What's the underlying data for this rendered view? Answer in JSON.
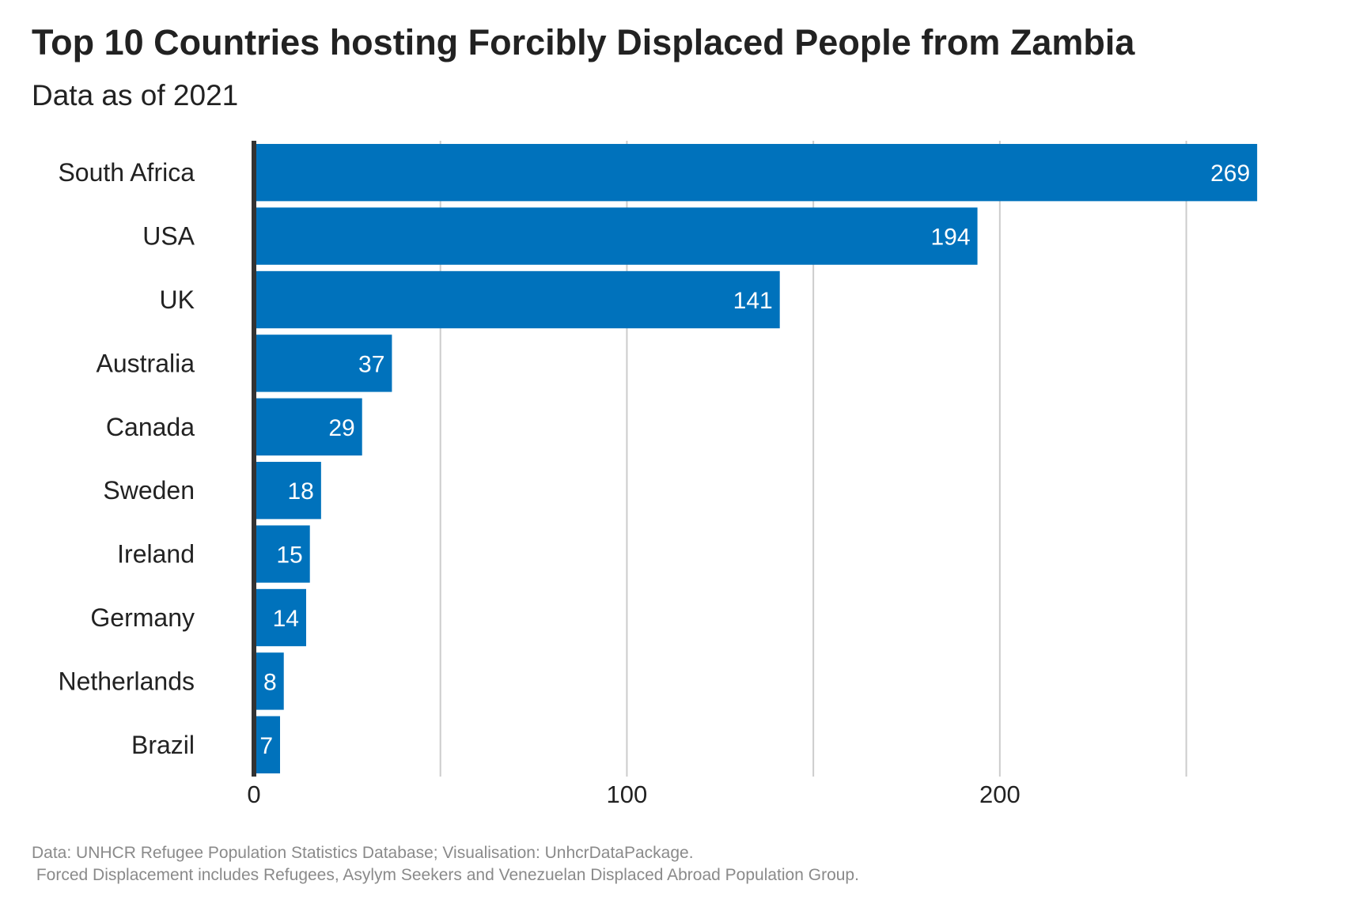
{
  "title": "Top 10 Countries hosting Forcibly Displaced People from Zambia",
  "subtitle": "Data as of 2021",
  "caption_line1": "Data: UNHCR Refugee Population Statistics Database; Visualisation: UnhcrDataPackage.",
  "caption_line2": " Forced Displacement includes Refugees, Asylym Seekers and Venezuelan Displaced Abroad Population Group.",
  "colors": {
    "bar": "#0072bc",
    "grid": "#cccccc",
    "axis": "#333333",
    "label": "#ffffff",
    "text": "#222222"
  },
  "chart_data": {
    "type": "bar",
    "orientation": "horizontal",
    "title": "Top 10 Countries hosting Forcibly Displaced People from Zambia",
    "subtitle": "Data as of 2021",
    "categories": [
      "South Africa",
      "USA",
      "UK",
      "Australia",
      "Canada",
      "Sweden",
      "Ireland",
      "Germany",
      "Netherlands",
      "Brazil"
    ],
    "values": [
      269,
      194,
      141,
      37,
      29,
      18,
      15,
      14,
      8,
      7
    ],
    "xlim": [
      0,
      280
    ],
    "x_ticks": [
      0,
      100,
      200
    ],
    "x_tick_labels": [
      "0",
      "100",
      "200"
    ],
    "minor_gridlines": [
      50,
      150,
      250
    ],
    "grid": true,
    "legend": "none"
  }
}
